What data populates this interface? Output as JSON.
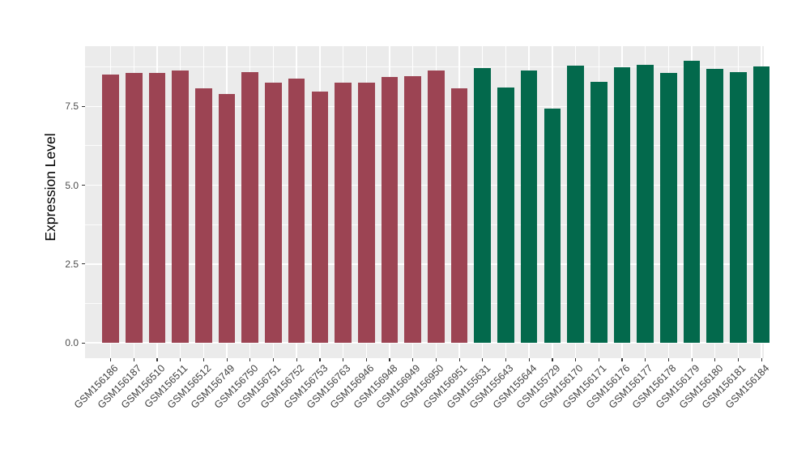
{
  "chart_data": {
    "type": "bar",
    "title": "",
    "xlabel": "",
    "ylabel": "Expression Level",
    "ylim": [
      0,
      9.41
    ],
    "yticks": [
      0.0,
      2.5,
      5.0,
      7.5
    ],
    "ytick_labels": [
      "0.0",
      "2.5",
      "5.0",
      "7.5"
    ],
    "yminor_ticks": [
      1.25,
      3.75,
      6.25,
      8.75
    ],
    "grid": "white major+minor horizontal lines and major vertical lines on gray panel",
    "legend_position": "none",
    "categories": [
      "GSM156186",
      "GSM156187",
      "GSM156510",
      "GSM156511",
      "GSM156512",
      "GSM156749",
      "GSM156750",
      "GSM156751",
      "GSM156752",
      "GSM156753",
      "GSM156763",
      "GSM156946",
      "GSM156948",
      "GSM156949",
      "GSM156950",
      "GSM156951",
      "GSM155631",
      "GSM155643",
      "GSM155644",
      "GSM155729",
      "GSM156170",
      "GSM156171",
      "GSM156176",
      "GSM156177",
      "GSM156178",
      "GSM156179",
      "GSM156180",
      "GSM156181",
      "GSM156184"
    ],
    "values": [
      8.5,
      8.55,
      8.56,
      8.65,
      8.06,
      7.9,
      8.58,
      8.25,
      8.37,
      7.97,
      8.26,
      8.24,
      8.43,
      8.45,
      8.63,
      8.08,
      8.72,
      8.1,
      8.64,
      7.44,
      8.8,
      8.29,
      8.73,
      8.83,
      8.56,
      8.94,
      8.68,
      8.59,
      8.77
    ],
    "group_index": [
      0,
      0,
      0,
      0,
      0,
      0,
      0,
      0,
      0,
      0,
      0,
      0,
      0,
      0,
      0,
      0,
      1,
      1,
      1,
      1,
      1,
      1,
      1,
      1,
      1,
      1,
      1,
      1,
      1
    ]
  },
  "colors": {
    "group_palette": [
      "#9C4453",
      "#03694C"
    ],
    "panel_background": "#EBEBEB",
    "gridline": "#FFFFFF",
    "tick_label": "#4D4D4D",
    "axis_title": "#000000"
  }
}
